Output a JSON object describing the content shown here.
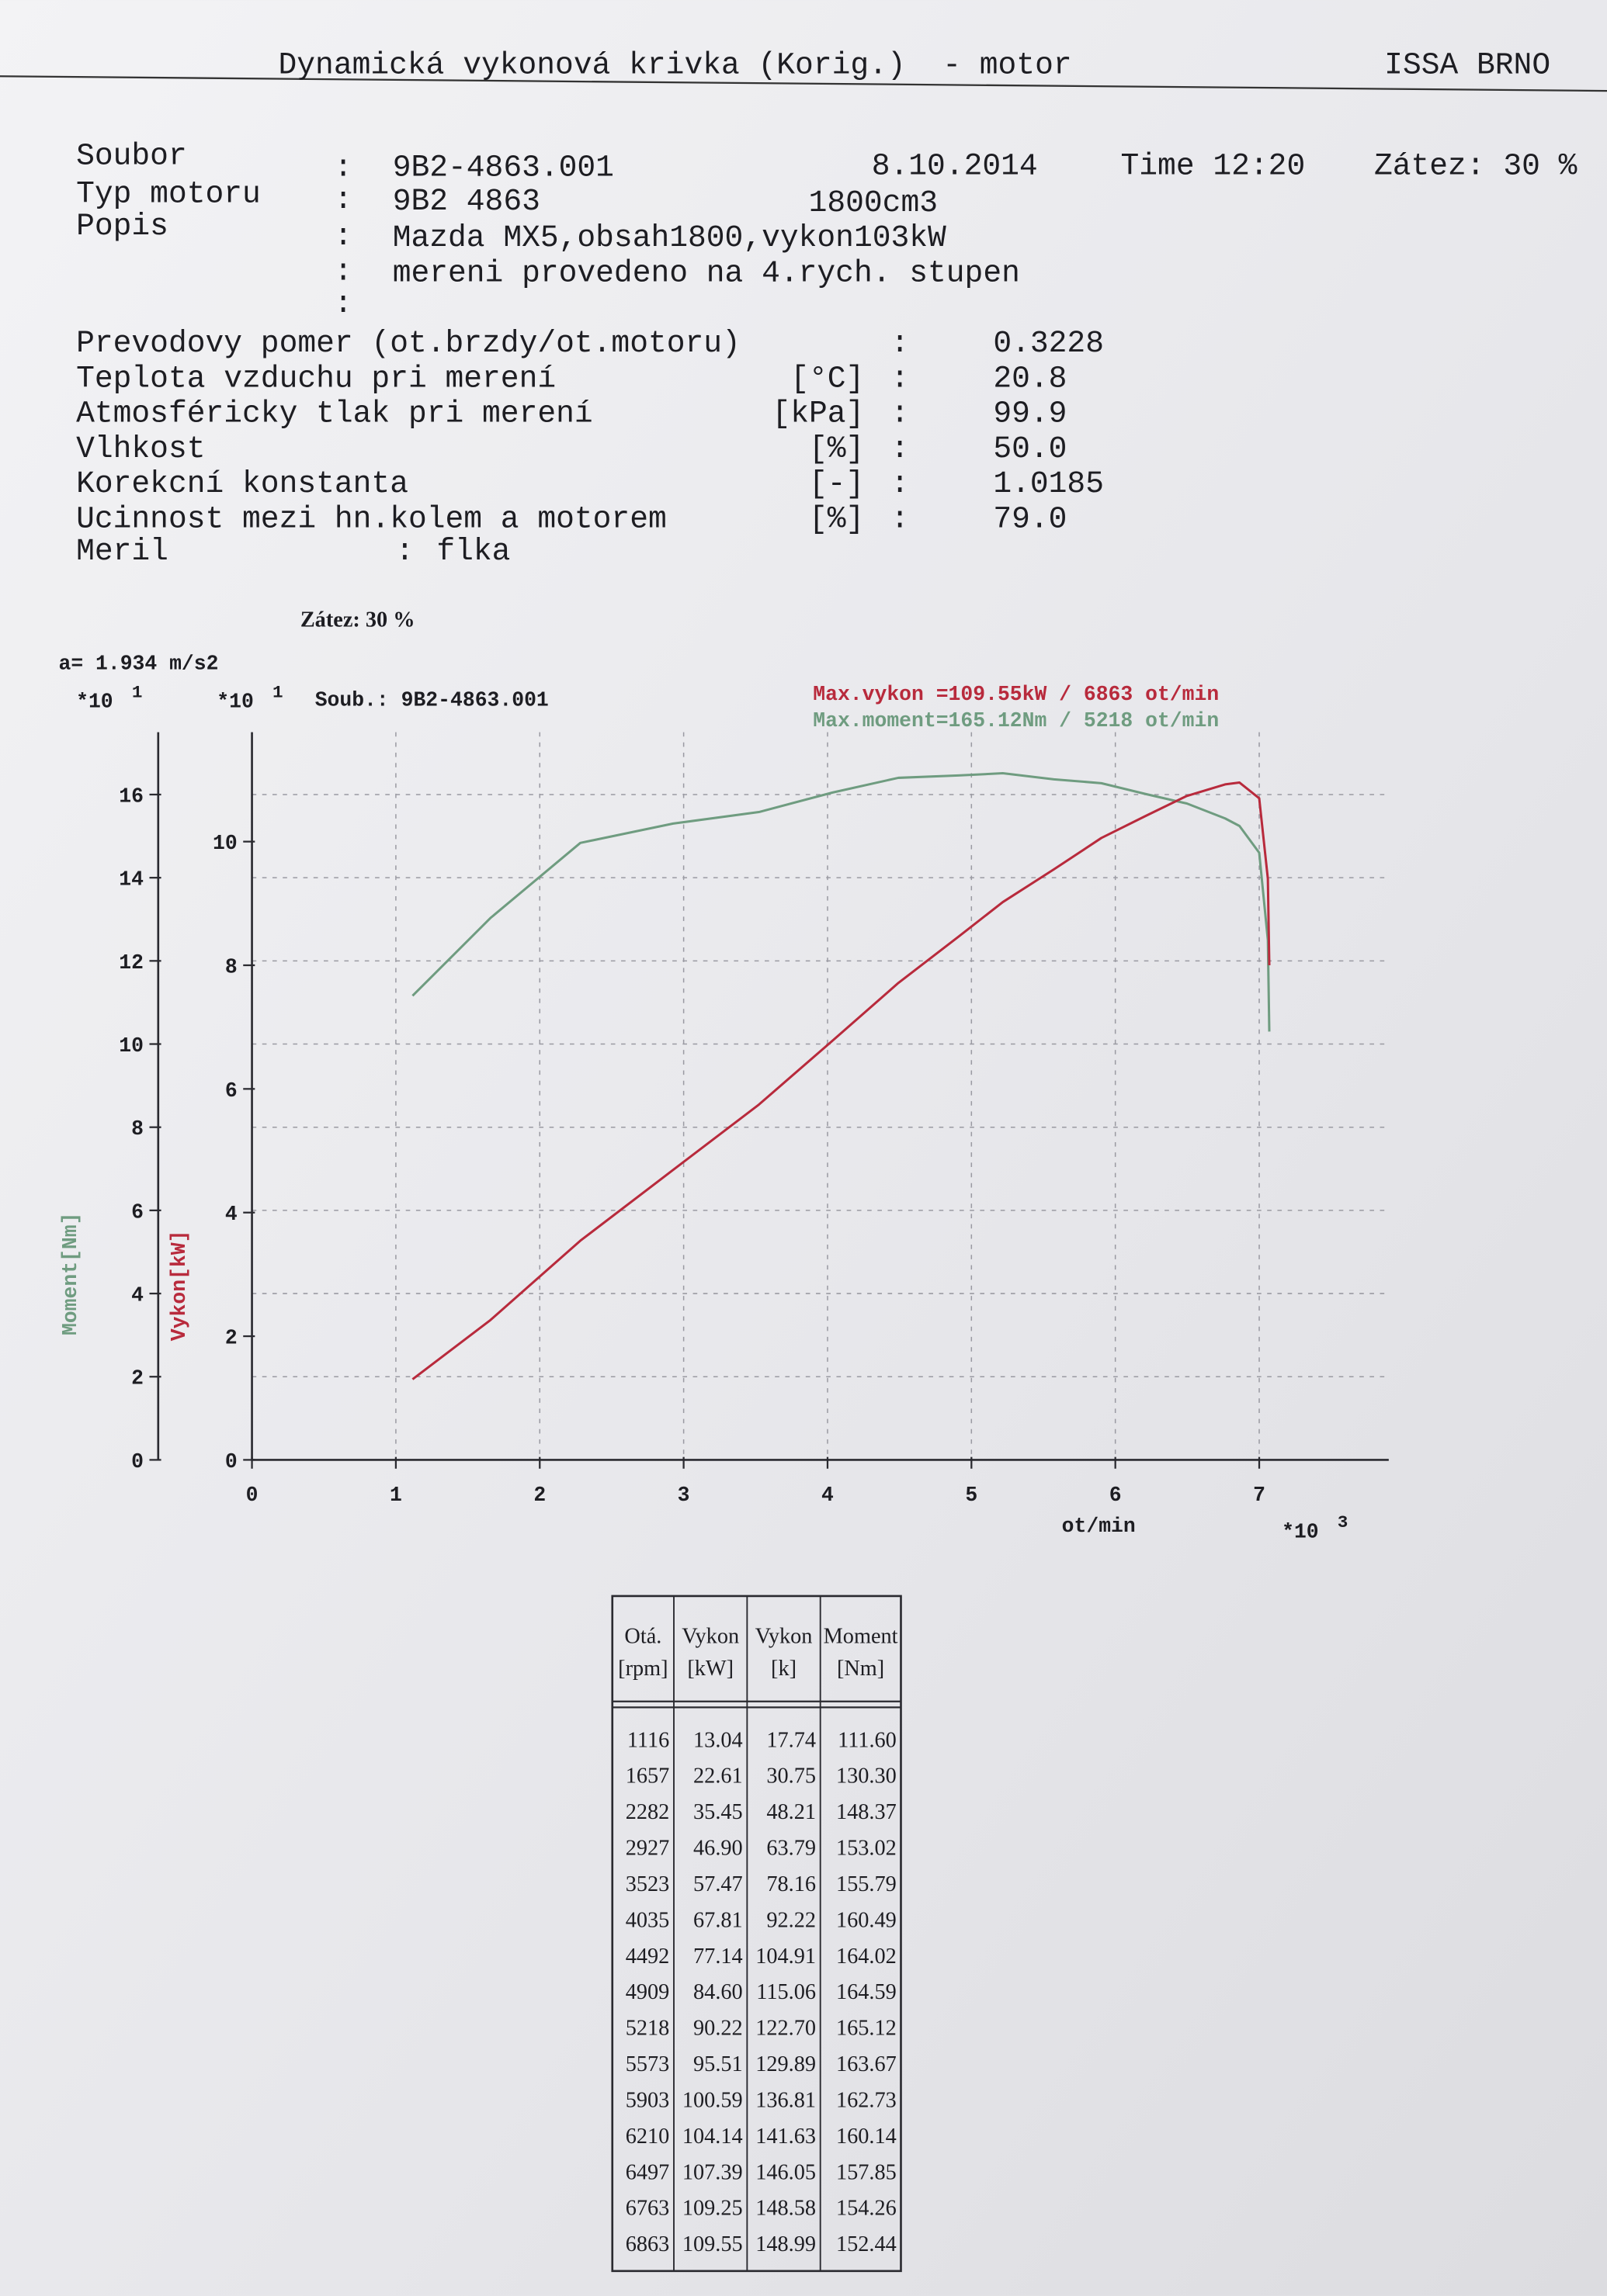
{
  "header": {
    "title": "Dynamická vykonová krivka (Korig.)  - motor",
    "company": "ISSA BRNO"
  },
  "info": {
    "separator": ":",
    "file": {
      "label": "Soubor",
      "value": "9B2-4863.001"
    },
    "date": "8.10.2014",
    "time": "Time 12:20",
    "load": "Zátez: 30 %",
    "engine": {
      "label": "Typ motoru",
      "value": "9B2 4863"
    },
    "displacement": "1800cm3",
    "description": {
      "label": "Popis",
      "lines": [
        "Mazda MX5,obsah1800,vykon103kW",
        "mereni provedeno na 4.rych. stupen"
      ]
    }
  },
  "measurements": [
    {
      "label": "Prevodovy pomer (ot.brzdy/ot.motoru)",
      "value": "0.3228"
    },
    {
      "label": "Teplota vzduchu pri merení",
      "unit": "[°C]",
      "value": "20.8"
    },
    {
      "label": "Atmosféricky tlak pri merení",
      "unit": "[kPa]",
      "value": "99.9"
    },
    {
      "label": "Vlhkost",
      "unit": "[%]",
      "value": "50.0"
    },
    {
      "label": "Korekcní konstanta",
      "unit": "[-]",
      "value": "1.0185"
    },
    {
      "label": "Ucinnost mezi hn.kolem a motorem",
      "unit": "[%]",
      "value": "79.0"
    }
  ],
  "operator": {
    "label": "Meril",
    "value": "flka"
  },
  "chart_data": {
    "type": "line",
    "load_label": "Zátez: 30 %",
    "acceleration": "a= 1.934 m/s2",
    "file_label": "Soub.: 9B2-4863.001",
    "annotations": [
      "Max.vykon =109.55kW /  6863 ot/min",
      "Max.moment=165.12Nm /  5218 ot/min"
    ],
    "y_label": "Moment[Nm]",
    "y2_label": "Vykon[kW]",
    "x_label": "ot/min",
    "y_multiplier": {
      "base": "*10",
      "exp": "1"
    },
    "y2_multiplier": {
      "base": "*10",
      "exp": "1"
    },
    "x_multiplier": {
      "base": "*10",
      "exp": "3"
    },
    "x": [
      1.116,
      1.657,
      2.282,
      2.927,
      3.523,
      4.035,
      4.492,
      4.909,
      5.218,
      5.573,
      5.903,
      6.21,
      6.497,
      6.763,
      6.863,
      7.0,
      7.06,
      7.07
    ],
    "series": [
      {
        "name": "Moment[Nm]",
        "color": "#6f9c80",
        "values": [
          11.16,
          13.03,
          14.837,
          15.302,
          15.579,
          16.049,
          16.402,
          16.459,
          16.512,
          16.367,
          16.273,
          16.014,
          15.785,
          15.426,
          15.244,
          14.6,
          12.5,
          10.3
        ]
      },
      {
        "name": "Vykon[kW]",
        "color": "#b82a3c",
        "axis": "y2",
        "values": [
          1.304,
          2.261,
          3.545,
          4.69,
          5.747,
          6.781,
          7.714,
          8.46,
          9.022,
          9.551,
          10.059,
          10.414,
          10.739,
          10.925,
          10.955,
          10.7,
          9.4,
          8.0
        ]
      }
    ],
    "xlim": [
      0,
      7.9
    ],
    "xticks": [
      0,
      1,
      2,
      3,
      4,
      5,
      6,
      7
    ],
    "ylim": [
      0,
      17.5
    ],
    "yticks": [
      0,
      2,
      4,
      6,
      8,
      10,
      12,
      14,
      16
    ],
    "y2lim": [
      0,
      11.77
    ],
    "y2ticks": [
      0,
      2,
      4,
      6,
      8,
      10
    ],
    "grid": true
  },
  "table": {
    "columns": [
      [
        "Otá.",
        "[rpm]"
      ],
      [
        "Vykon",
        "[kW]"
      ],
      [
        "Vykon",
        "[k]"
      ],
      [
        "Moment",
        "[Nm]"
      ]
    ],
    "rows": [
      [
        "1116",
        "13.04",
        "17.74",
        "111.60"
      ],
      [
        "1657",
        "22.61",
        "30.75",
        "130.30"
      ],
      [
        "2282",
        "35.45",
        "48.21",
        "148.37"
      ],
      [
        "2927",
        "46.90",
        "63.79",
        "153.02"
      ],
      [
        "3523",
        "57.47",
        "78.16",
        "155.79"
      ],
      [
        "4035",
        "67.81",
        "92.22",
        "160.49"
      ],
      [
        "4492",
        "77.14",
        "104.91",
        "164.02"
      ],
      [
        "4909",
        "84.60",
        "115.06",
        "164.59"
      ],
      [
        "5218",
        "90.22",
        "122.70",
        "165.12"
      ],
      [
        "5573",
        "95.51",
        "129.89",
        "163.67"
      ],
      [
        "5903",
        "100.59",
        "136.81",
        "162.73"
      ],
      [
        "6210",
        "104.14",
        "141.63",
        "160.14"
      ],
      [
        "6497",
        "107.39",
        "146.05",
        "157.85"
      ],
      [
        "6763",
        "109.25",
        "148.58",
        "154.26"
      ],
      [
        "6863",
        "109.55",
        "148.99",
        "152.44"
      ]
    ]
  }
}
